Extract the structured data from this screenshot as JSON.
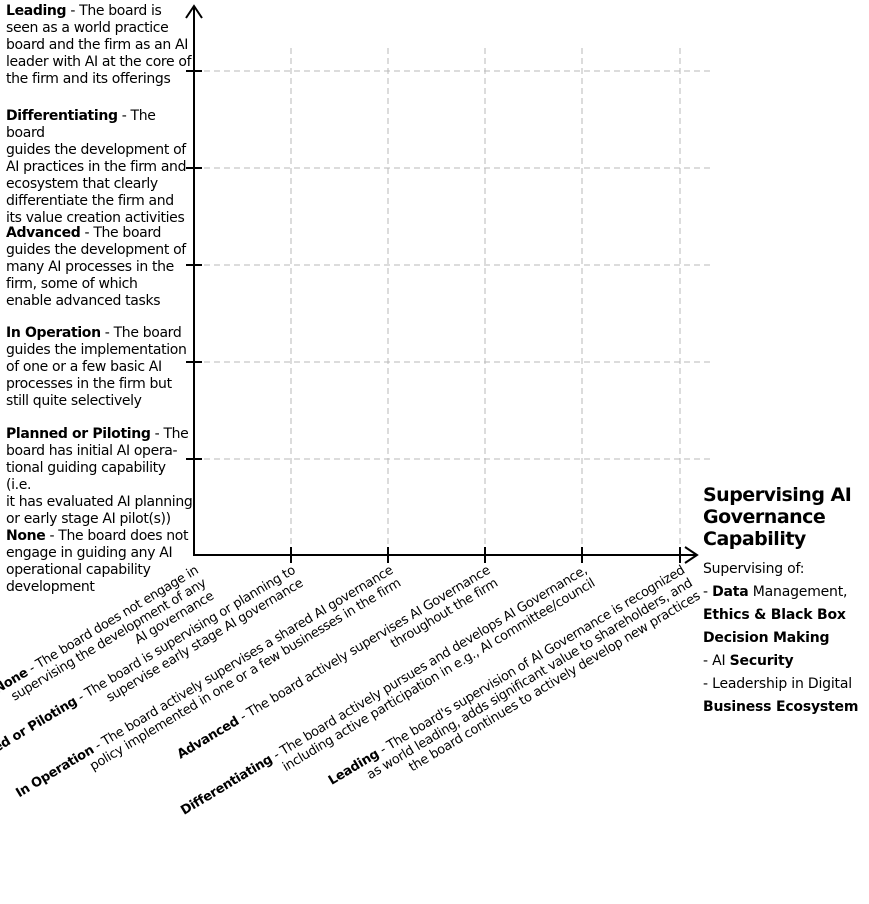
{
  "colors": {
    "axis": "#000000",
    "grid": "#b9b9b9"
  },
  "y_axis": {
    "levels": [
      {
        "bold": "Leading",
        "text": " - The board is\nseen as a world practice\nboard and the firm as an AI\nleader with AI at the core of\nthe firm and its offerings"
      },
      {
        "bold": "Differentiating",
        "text": " - The board\nguides the development of\nAI practices in the firm and\necosystem that clearly\ndifferentiate the firm and\nits value creation activities"
      },
      {
        "bold": "Advanced",
        "text": " - The board\nguides the development of\nmany AI processes in the\nfirm, some of which\nenable advanced tasks"
      },
      {
        "bold": "In Operation",
        "text": " - The board\nguides the implementation\nof one or a few basic AI\nprocesses in the firm but\nstill quite selectively"
      },
      {
        "bold": "Planned or Piloting",
        "text": " - The\nboard has initial AI opera-\ntional guiding capability (i.e.\nit has evaluated AI planning\nor early stage AI pilot(s))"
      },
      {
        "bold": "None",
        "text": " - The board does not\nengage in guiding any AI\noperational capability\ndevelopment"
      }
    ]
  },
  "x_axis": {
    "levels": [
      {
        "bold": "None",
        "text": " - The board does not engage in\nsupervising the development of any\nAI governance"
      },
      {
        "bold": "Planned or Piloting",
        "text": " - The board is supervising or planning to\nsupervise early stage AI governance"
      },
      {
        "bold": "In Operation",
        "text": " - The board actively supervises a shared AI governance\npolicy implemented in one or a few businesses in the firm"
      },
      {
        "bold": "Advanced",
        "text": " - The board actively supervises AI Governance\nthroughout the firm"
      },
      {
        "bold": "Differentiating",
        "text": " - The board actively pursues and develops AI Governance,\nincluding active participation in e.g., AI committee/council"
      },
      {
        "bold": "Leading",
        "text": " - The board's supervision of AI Governance is recognized\nas world leading, adds significant value to shareholders, and\nthe board continues to actively develop new practices"
      }
    ]
  },
  "legend": {
    "title": "Supervising AI\nGovernance\nCapability",
    "intro": "Supervising of:",
    "lines": [
      {
        "pre": "- ",
        "bold": "Data",
        "post": " Management,"
      },
      {
        "pre": "",
        "bold": "Ethics & Black Box",
        "post": ""
      },
      {
        "pre": "",
        "bold": "Decision Making",
        "post": ""
      },
      {
        "pre": "- AI ",
        "bold": "Security",
        "post": ""
      },
      {
        "pre": "- Leadership in Digital",
        "bold": "",
        "post": ""
      },
      {
        "pre": "",
        "bold": "Business Ecosystem",
        "post": ""
      }
    ]
  }
}
